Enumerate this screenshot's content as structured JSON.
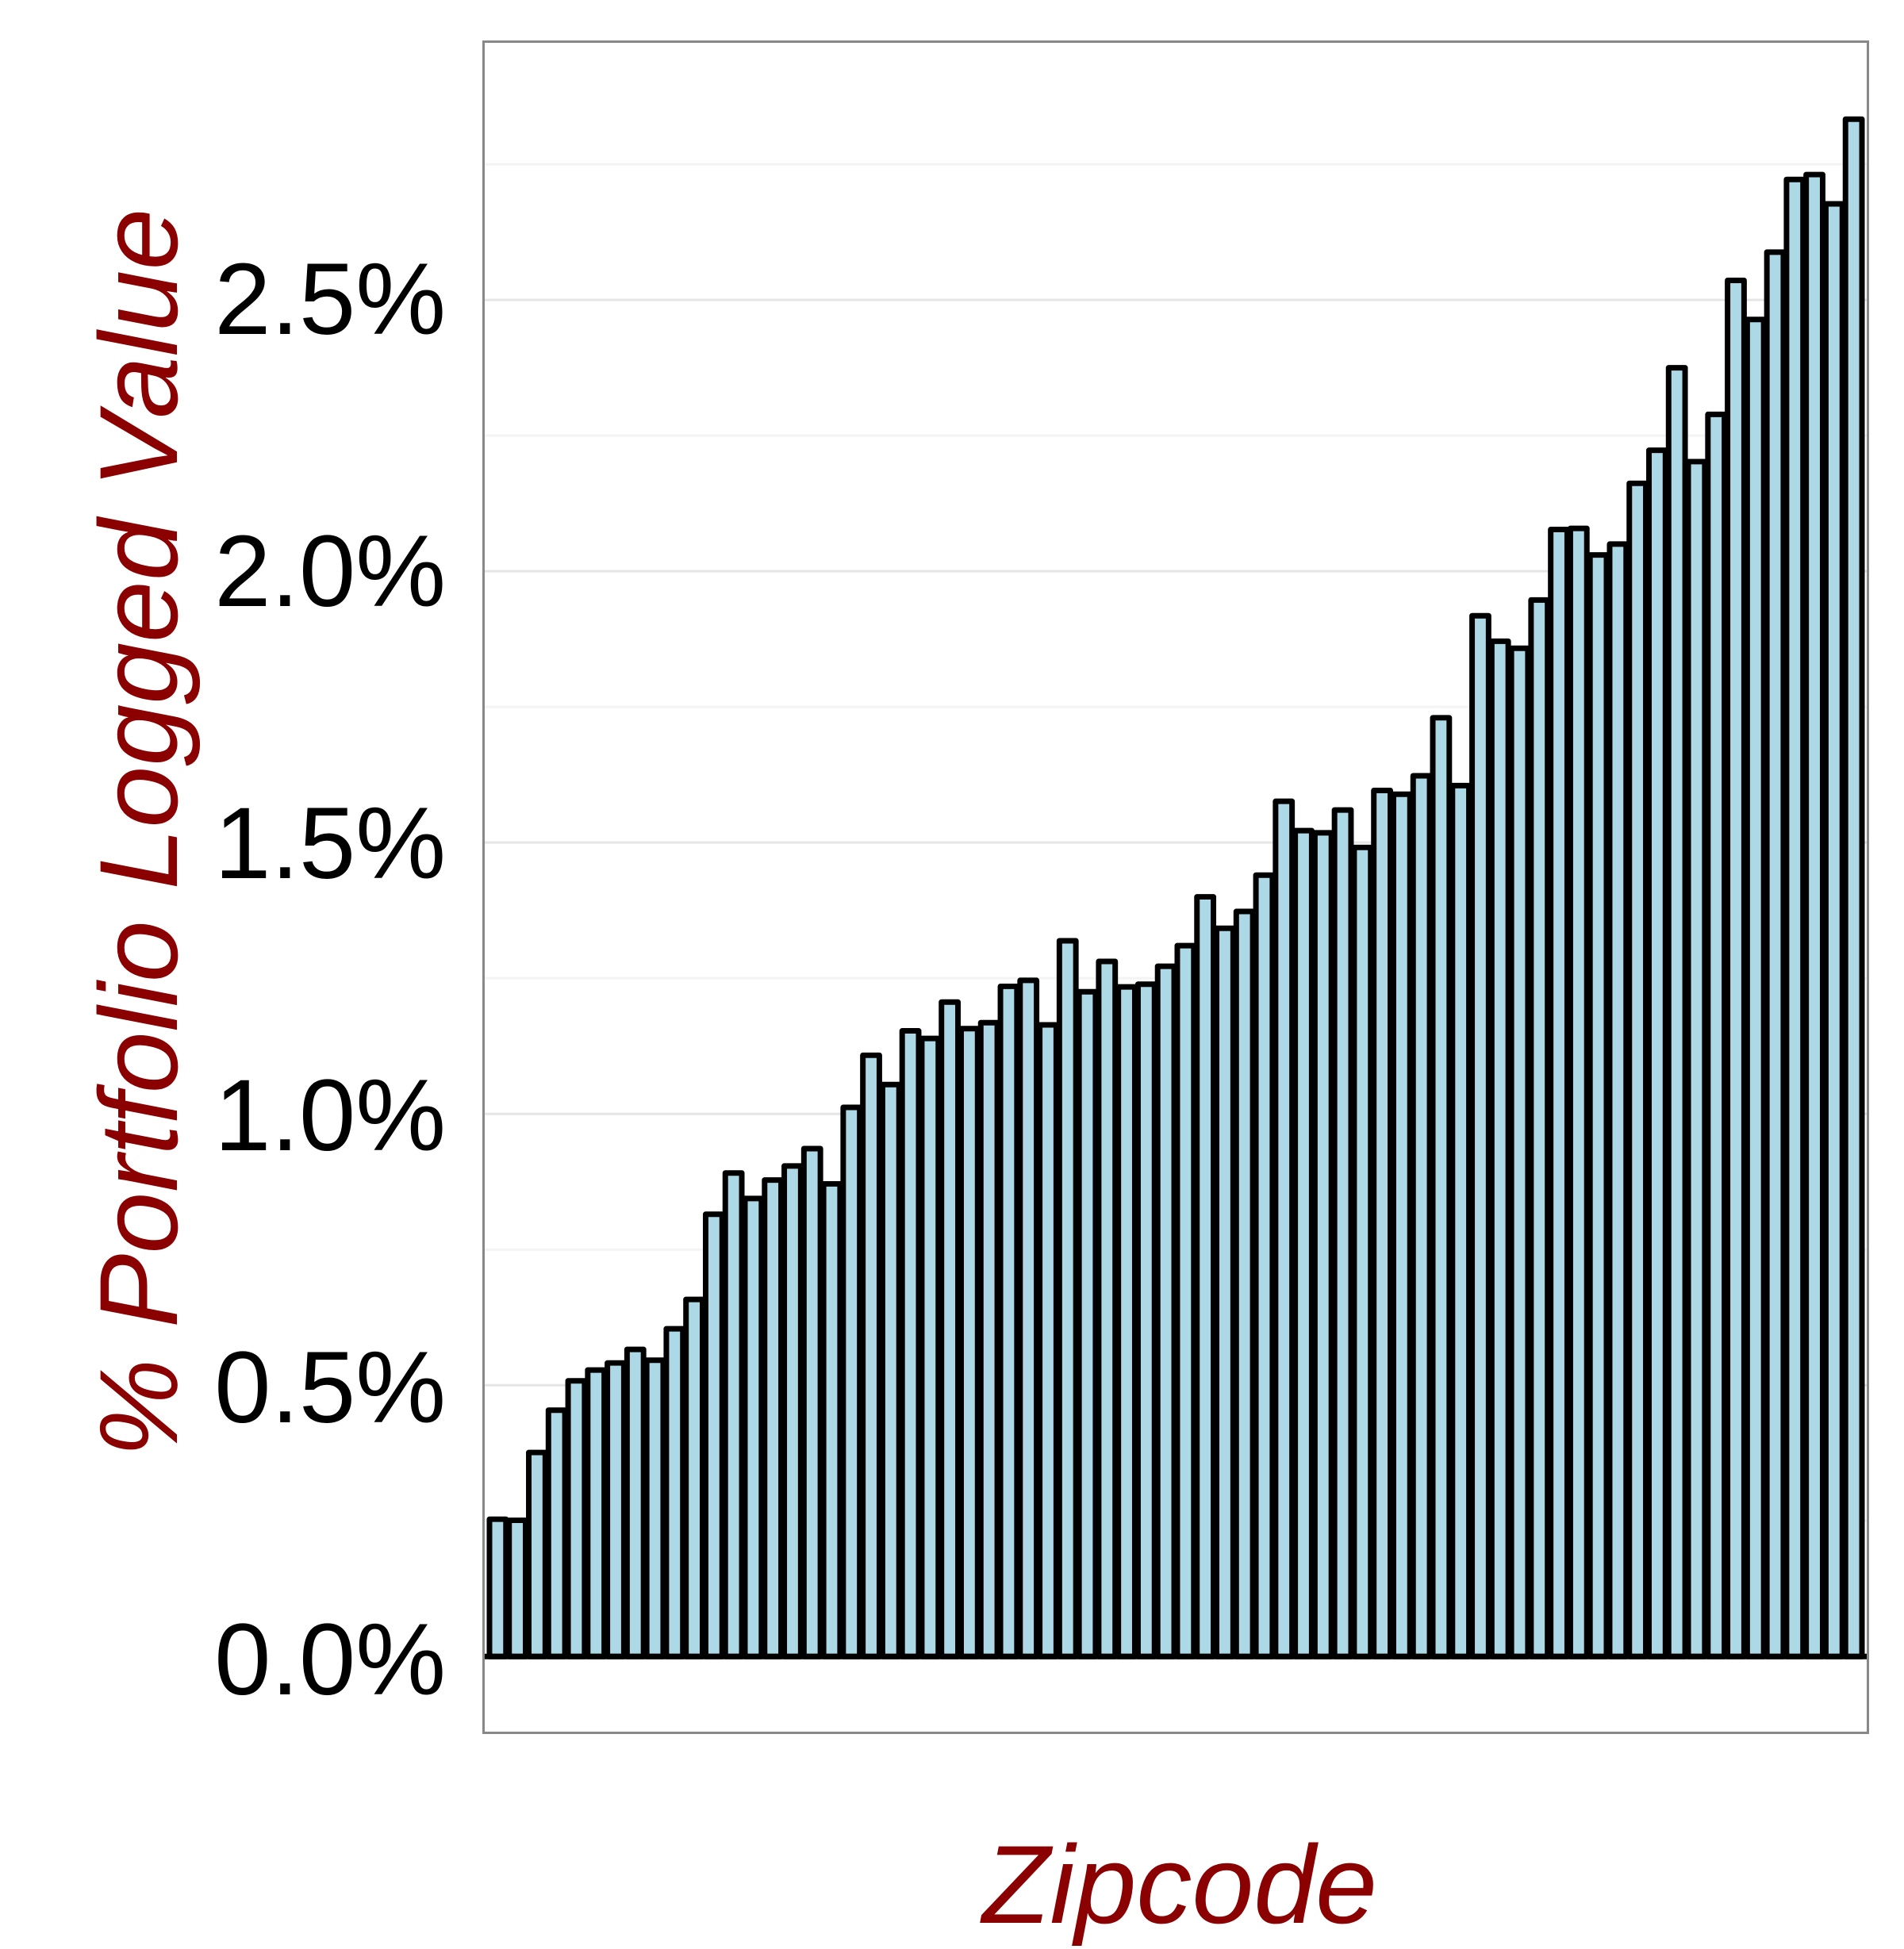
{
  "chart_data": {
    "type": "bar",
    "title": "",
    "xlabel": "Zipcode",
    "ylabel": "% Portfolio Logged Value",
    "ylim": [
      -0.0014,
      0.0297
    ],
    "yticks": [
      "0.0%",
      "0.5%",
      "1.0%",
      "1.5%",
      "2.0%",
      "2.5%"
    ],
    "ytick_values": [
      0.0,
      0.005,
      0.01,
      0.015,
      0.02,
      0.025
    ],
    "grid": true,
    "legend": null,
    "bar_fill": "#add8e6",
    "bar_edge": "#000000",
    "categories_visible": false,
    "values": [
      0.00253,
      0.00251,
      0.00376,
      0.00454,
      0.00508,
      0.00528,
      0.00541,
      0.00566,
      0.00546,
      0.00604,
      0.00658,
      0.00815,
      0.00891,
      0.00844,
      0.00878,
      0.00904,
      0.00936,
      0.00871,
      0.01012,
      0.01108,
      0.01054,
      0.01153,
      0.01139,
      0.01206,
      0.01157,
      0.01168,
      0.01235,
      0.01246,
      0.01164,
      0.01319,
      0.01225,
      0.01281,
      0.01234,
      0.01239,
      0.01272,
      0.0131,
      0.014,
      0.01342,
      0.01373,
      0.0144,
      0.01576,
      0.01522,
      0.01518,
      0.0156,
      0.01491,
      0.01596,
      0.01589,
      0.01623,
      0.0173,
      0.01605,
      0.01918,
      0.01871,
      0.01858,
      0.01947,
      0.02077,
      0.02079,
      0.0203,
      0.0205,
      0.02162,
      0.02223,
      0.02375,
      0.02202,
      0.02289,
      0.02536,
      0.02464,
      0.02588,
      0.02722,
      0.02731,
      0.02677,
      0.02833
    ]
  },
  "axes": {
    "xlabel": "Zipcode",
    "ylabel": "% Portfolio Logged Value"
  },
  "colors": {
    "label": "#8b0000",
    "bar_fill": "#add8e6",
    "bar_edge": "#000000",
    "frame": "#888888",
    "grid_major": "#e5e5e5",
    "grid_minor": "#f4f4f4"
  }
}
